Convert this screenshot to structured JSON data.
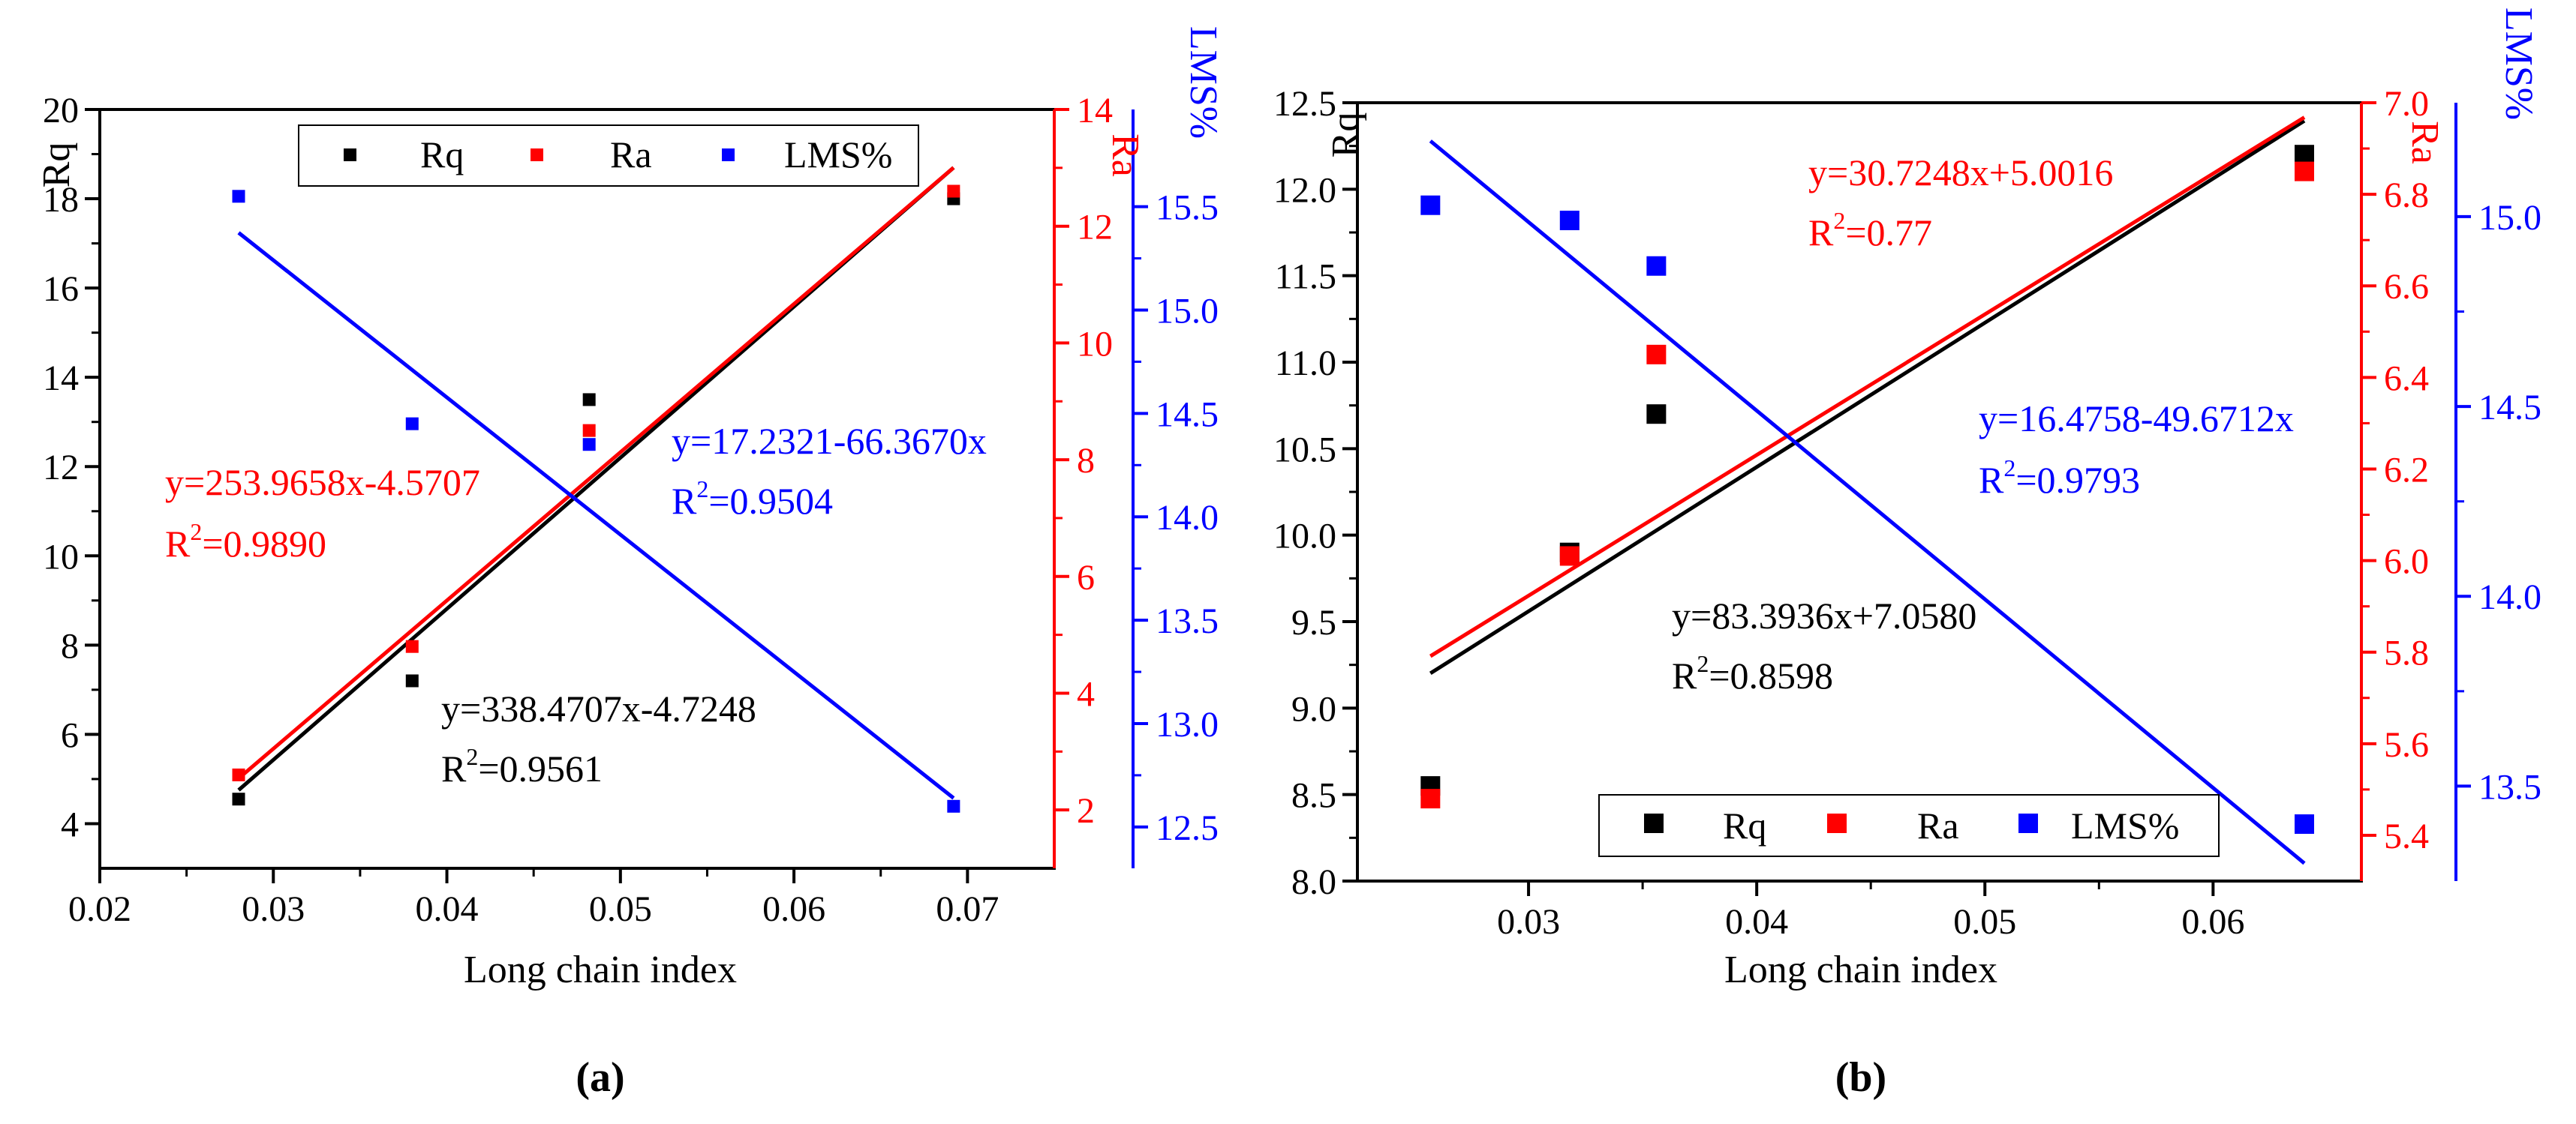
{
  "chart_data": [
    {
      "panel_label": "(a)",
      "type": "scatter",
      "xlabel": "Long chain index",
      "x_ticks": [
        "0.02",
        "0.03",
        "0.04",
        "0.05",
        "0.06",
        "0.07"
      ],
      "xlim": [
        0.02,
        0.075
      ],
      "axes": [
        {
          "id": "rq",
          "label": "Rq",
          "side": "left",
          "color": "#000000",
          "lim": [
            3,
            20
          ],
          "ticks": [
            "4",
            "6",
            "8",
            "10",
            "12",
            "14",
            "16",
            "18",
            "20"
          ]
        },
        {
          "id": "ra",
          "label": "Ra",
          "side": "right",
          "color": "#ff0000",
          "lim": [
            1,
            14
          ],
          "ticks": [
            "2",
            "4",
            "6",
            "8",
            "10",
            "12",
            "14"
          ]
        },
        {
          "id": "lms",
          "label": "LMS%",
          "side": "right-offset",
          "color": "#0000ff",
          "lim": [
            12.3,
            15.97
          ],
          "ticks": [
            "12.5",
            "13.0",
            "13.5",
            "14.0",
            "14.5",
            "15.0",
            "15.5"
          ]
        }
      ],
      "series": [
        {
          "name": "Rq",
          "axis": "rq",
          "color": "#000000",
          "x": [
            0.028,
            0.038,
            0.0482,
            0.0692
          ],
          "y": [
            4.55,
            7.2,
            13.5,
            18.0
          ]
        },
        {
          "name": "Ra",
          "axis": "ra",
          "color": "#ff0000",
          "x": [
            0.028,
            0.038,
            0.0482,
            0.0692
          ],
          "y": [
            2.6,
            4.8,
            8.5,
            12.6
          ]
        },
        {
          "name": "LMS%",
          "axis": "lms",
          "color": "#0000ff",
          "x": [
            0.028,
            0.038,
            0.0482,
            0.0692
          ],
          "y": [
            15.55,
            14.45,
            14.35,
            12.6
          ]
        }
      ],
      "fits": [
        {
          "series": "Rq",
          "axis": "rq",
          "color": "#000000",
          "slope": 338.4707,
          "intercept": -4.7248,
          "x_range": [
            0.028,
            0.0692
          ],
          "equation": "y=338.4707x-4.7248",
          "r2_prefix": "R",
          "r2_value": "=0.9561"
        },
        {
          "series": "Ra",
          "axis": "ra",
          "color": "#ff0000",
          "slope": 253.9658,
          "intercept": -4.5707,
          "x_range": [
            0.028,
            0.0692
          ],
          "equation": "y=253.9658x-4.5707",
          "r2_prefix": "R",
          "r2_value": "=0.9890"
        },
        {
          "series": "LMS%",
          "axis": "lms",
          "color": "#0000ff",
          "slope": -66.367,
          "intercept": 17.2321,
          "x_range": [
            0.028,
            0.0692
          ],
          "equation": "y=17.2321-66.3670x",
          "r2_prefix": "R",
          "r2_value": "=0.9504"
        }
      ],
      "legend": {
        "position": "top",
        "entries": [
          "Rq",
          "Ra",
          "LMS%"
        ]
      }
    },
    {
      "panel_label": "(b)",
      "type": "scatter",
      "xlabel": "Long chain index",
      "x_ticks": [
        "0.03",
        "0.04",
        "0.05",
        "0.06"
      ],
      "xlim": [
        0.0225,
        0.0665
      ],
      "axes": [
        {
          "id": "rq",
          "label": "Rq",
          "side": "left",
          "color": "#000000",
          "lim": [
            8.0,
            12.5
          ],
          "ticks": [
            "8.0",
            "8.5",
            "9.0",
            "9.5",
            "10.0",
            "10.5",
            "11.0",
            "11.5",
            "12.0",
            "12.5"
          ]
        },
        {
          "id": "ra",
          "label": "Ra",
          "side": "right",
          "color": "#ff0000",
          "lim": [
            5.3,
            7.0
          ],
          "ticks": [
            "5.4",
            "5.6",
            "5.8",
            "6.0",
            "6.2",
            "6.4",
            "6.6",
            "6.8",
            "7.0"
          ]
        },
        {
          "id": "lms",
          "label": "LMS%",
          "side": "right-offset",
          "color": "#0000ff",
          "lim": [
            13.25,
            15.3
          ],
          "ticks": [
            "13.5",
            "14.0",
            "14.5",
            "15.0"
          ]
        }
      ],
      "series": [
        {
          "name": "Rq",
          "axis": "rq",
          "color": "#000000",
          "x": [
            0.0257,
            0.0318,
            0.0356,
            0.064
          ],
          "y": [
            8.55,
            9.9,
            10.7,
            12.2
          ]
        },
        {
          "name": "Ra",
          "axis": "ra",
          "color": "#ff0000",
          "x": [
            0.0257,
            0.0318,
            0.0356,
            0.064
          ],
          "y": [
            5.48,
            6.01,
            6.45,
            6.85
          ]
        },
        {
          "name": "LMS%",
          "axis": "lms",
          "color": "#0000ff",
          "x": [
            0.0257,
            0.0318,
            0.0356,
            0.064
          ],
          "y": [
            15.03,
            14.99,
            14.87,
            13.4
          ]
        }
      ],
      "fits": [
        {
          "series": "Rq",
          "axis": "rq",
          "color": "#000000",
          "slope": 83.3936,
          "intercept": 7.058,
          "x_range": [
            0.0257,
            0.064
          ],
          "equation": "y=83.3936x+7.0580",
          "r2_prefix": "R",
          "r2_value": "=0.8598"
        },
        {
          "series": "Ra",
          "axis": "ra",
          "color": "#ff0000",
          "slope": 30.7248,
          "intercept": 5.0016,
          "x_range": [
            0.0257,
            0.064
          ],
          "equation": "y=30.7248x+5.0016",
          "r2_prefix": "R",
          "r2_value": "=0.77"
        },
        {
          "series": "LMS%",
          "axis": "lms",
          "color": "#0000ff",
          "slope": -49.6712,
          "intercept": 16.4758,
          "x_range": [
            0.0257,
            0.064
          ],
          "equation": "y=16.4758-49.6712x",
          "r2_prefix": "R",
          "r2_value": "=0.9793"
        }
      ],
      "legend": {
        "position": "bottom",
        "entries": [
          "Rq",
          "Ra",
          "LMS%"
        ]
      }
    }
  ]
}
